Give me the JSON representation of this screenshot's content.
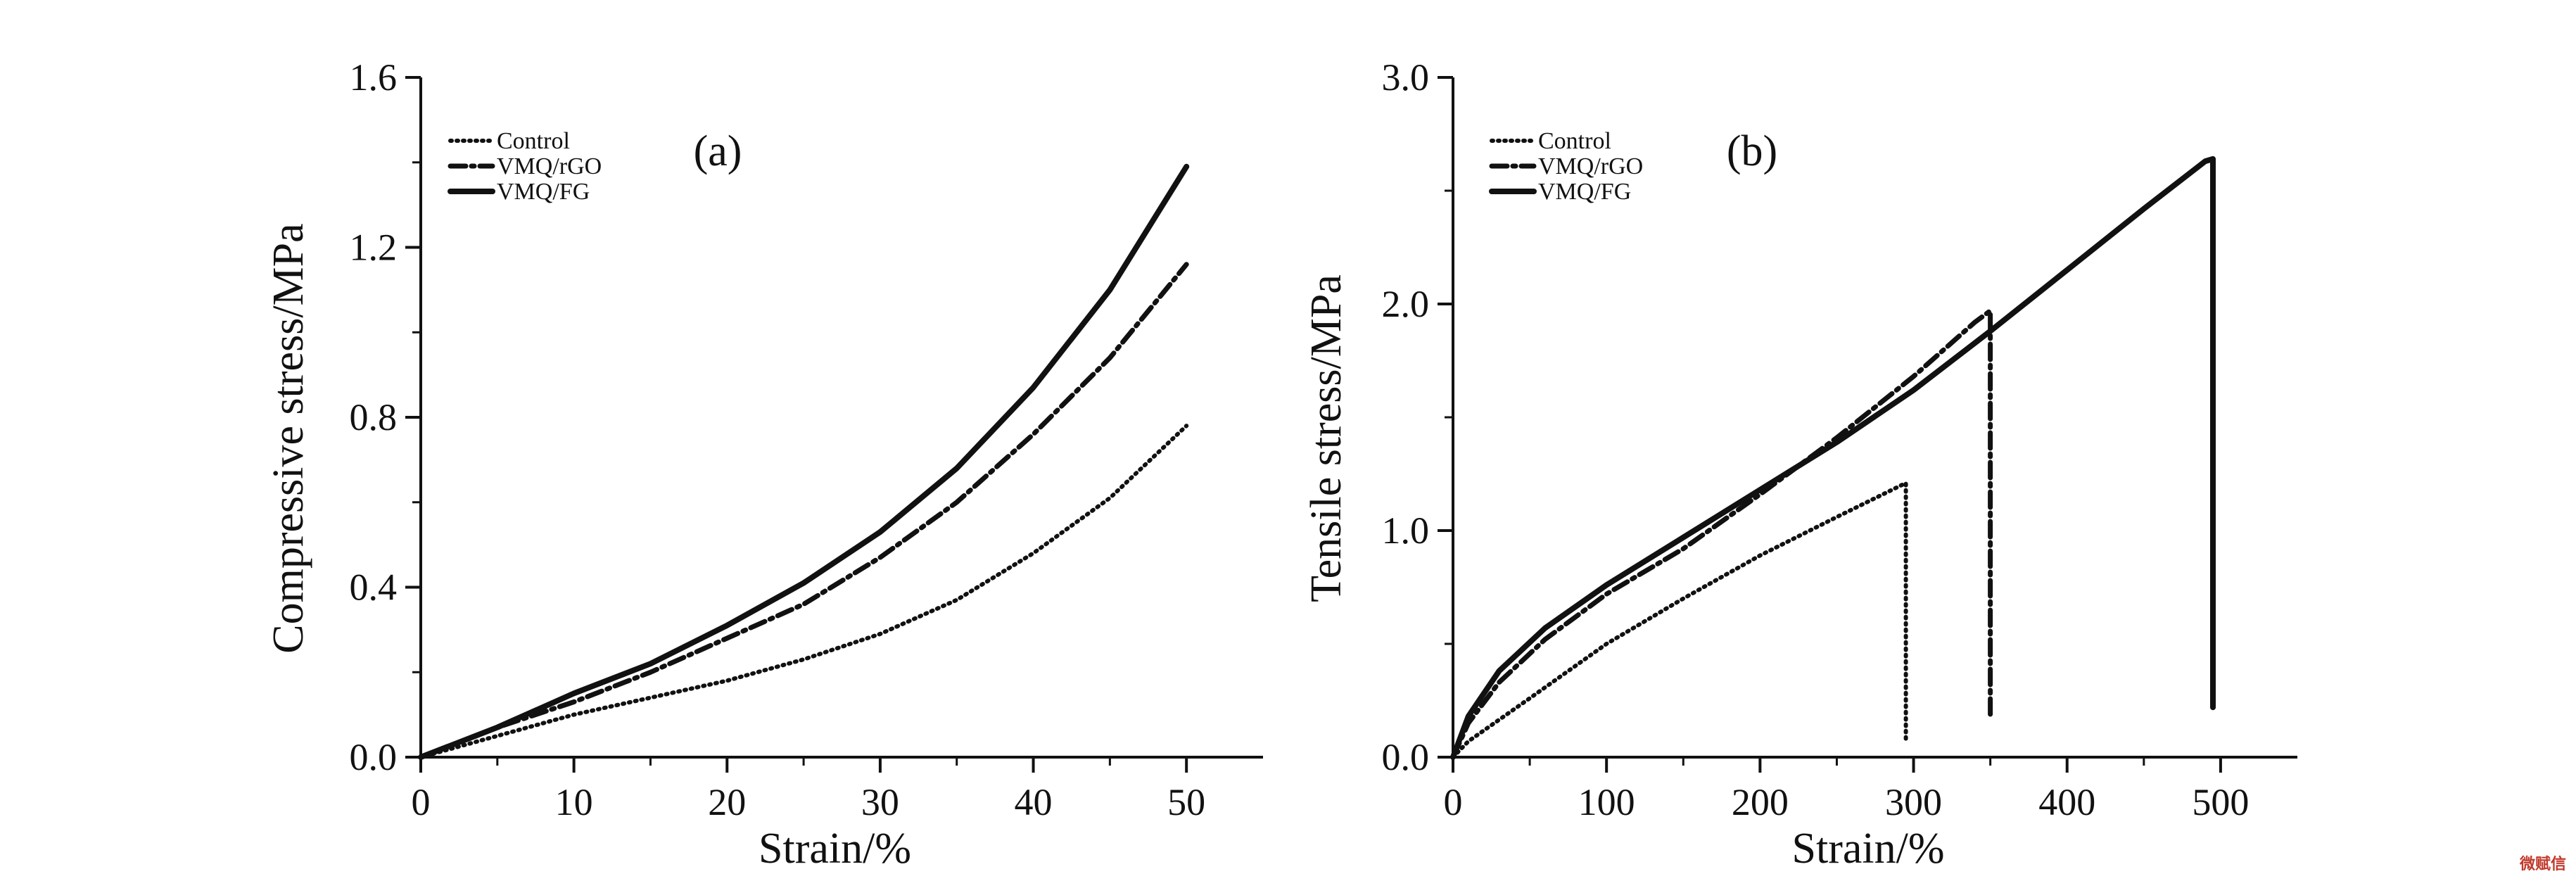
{
  "watermark": "微赋信",
  "chart_data": [
    {
      "type": "line",
      "panel_label": "(a)",
      "xlabel": "Strain/%",
      "ylabel": "Compressive stress/MPa",
      "xlim": [
        0,
        55
      ],
      "ylim": [
        0,
        1.6
      ],
      "x_ticks": [
        0,
        10,
        20,
        30,
        40,
        50
      ],
      "y_ticks": [
        0.0,
        0.4,
        0.8,
        1.2,
        1.6
      ],
      "x_tick_labels": [
        "0",
        "10",
        "20",
        "30",
        "40",
        "50"
      ],
      "y_tick_labels": [
        "0.0",
        "0.4",
        "0.8",
        "1.2",
        "1.6"
      ],
      "legend_position": "top-left",
      "series": [
        {
          "name": "Control",
          "style": "dotted",
          "x": [
            0,
            5,
            10,
            15,
            20,
            25,
            30,
            35,
            40,
            45,
            50
          ],
          "y": [
            0,
            0.05,
            0.1,
            0.14,
            0.18,
            0.23,
            0.29,
            0.37,
            0.48,
            0.61,
            0.78
          ]
        },
        {
          "name": "VMQ/rGO",
          "style": "dash-dot",
          "x": [
            0,
            5,
            10,
            15,
            20,
            25,
            30,
            35,
            40,
            45,
            50
          ],
          "y": [
            0,
            0.07,
            0.13,
            0.2,
            0.28,
            0.36,
            0.47,
            0.6,
            0.76,
            0.94,
            1.16
          ]
        },
        {
          "name": "VMQ/FG",
          "style": "solid",
          "x": [
            0,
            5,
            10,
            15,
            20,
            25,
            30,
            35,
            40,
            45,
            50
          ],
          "y": [
            0,
            0.07,
            0.15,
            0.22,
            0.31,
            0.41,
            0.53,
            0.68,
            0.87,
            1.1,
            1.39
          ]
        }
      ]
    },
    {
      "type": "line",
      "panel_label": "(b)",
      "xlabel": "Strain/%",
      "ylabel": "Tensile stress/MPa",
      "xlim": [
        0,
        550
      ],
      "ylim": [
        0,
        3.0
      ],
      "x_ticks": [
        0,
        100,
        200,
        300,
        400,
        500
      ],
      "y_ticks": [
        0.0,
        1.0,
        2.0,
        3.0
      ],
      "x_tick_labels": [
        "0",
        "100",
        "200",
        "300",
        "400",
        "500"
      ],
      "y_tick_labels": [
        "0.0",
        "1.0",
        "2.0",
        "3.0"
      ],
      "legend_position": "top-left",
      "series": [
        {
          "name": "Control",
          "style": "dotted",
          "x": [
            0,
            10,
            50,
            100,
            150,
            200,
            250,
            280,
            295,
            295
          ],
          "y": [
            0,
            0.07,
            0.26,
            0.5,
            0.7,
            0.89,
            1.06,
            1.16,
            1.21,
            0.08
          ]
        },
        {
          "name": "VMQ/rGO",
          "style": "dash-dot",
          "x": [
            0,
            10,
            30,
            60,
            100,
            150,
            200,
            250,
            300,
            340,
            350,
            350
          ],
          "y": [
            0,
            0.15,
            0.33,
            0.52,
            0.72,
            0.92,
            1.16,
            1.41,
            1.68,
            1.92,
            1.97,
            0.18
          ]
        },
        {
          "name": "VMQ/FG",
          "style": "solid",
          "x": [
            0,
            10,
            30,
            60,
            100,
            150,
            200,
            250,
            300,
            350,
            400,
            450,
            490,
            495,
            495
          ],
          "y": [
            0,
            0.18,
            0.38,
            0.57,
            0.76,
            0.97,
            1.18,
            1.39,
            1.62,
            1.88,
            2.15,
            2.42,
            2.63,
            2.64,
            0.22
          ]
        }
      ]
    }
  ]
}
